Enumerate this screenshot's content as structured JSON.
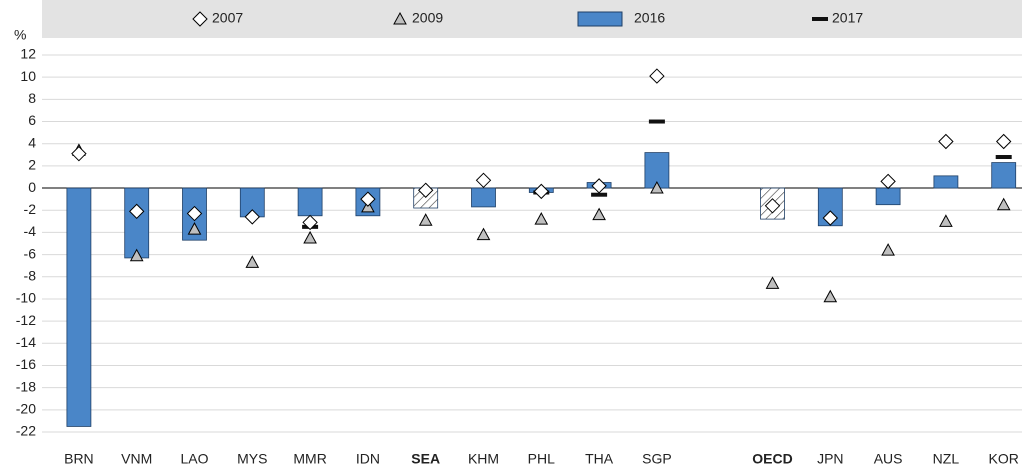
{
  "chart_data": {
    "type": "bar",
    "y_label": "%",
    "categories": [
      "BRN",
      "VNM",
      "LAO",
      "MYS",
      "MMR",
      "IDN",
      "SEA",
      "KHM",
      "PHL",
      "THA",
      "SGP",
      null,
      "OECD",
      "JPN",
      "AUS",
      "NZL",
      "KOR"
    ],
    "highlight": [
      "SEA",
      "OECD"
    ],
    "series": [
      {
        "name": "2007",
        "marker": "diamond",
        "color": "#ffffff",
        "values": [
          3.1,
          -2.1,
          -2.3,
          -2.6,
          -3.1,
          -1.0,
          -0.2,
          0.7,
          -0.3,
          0.2,
          10.1,
          null,
          -1.6,
          -2.7,
          0.6,
          4.2,
          4.2
        ]
      },
      {
        "name": "2009",
        "marker": "triangle",
        "color": "#bfbfbf",
        "values": [
          3.4,
          -6.1,
          -3.7,
          -6.7,
          -4.5,
          -1.7,
          -2.9,
          -4.2,
          -2.8,
          -2.4,
          0.0,
          null,
          -8.6,
          -9.8,
          -5.6,
          -3.0,
          -1.5
        ]
      },
      {
        "name": "2016",
        "marker": "bar",
        "color": "#4a86c8",
        "values": [
          -21.5,
          -6.3,
          -4.7,
          -2.6,
          -2.5,
          -2.5,
          -1.8,
          -1.7,
          -0.4,
          0.5,
          3.2,
          null,
          -2.8,
          -3.4,
          -1.5,
          1.1,
          2.3
        ]
      },
      {
        "name": "2017",
        "marker": "dash",
        "color": "#111111",
        "values": [
          null,
          null,
          null,
          null,
          -3.5,
          null,
          null,
          null,
          -0.4,
          -0.6,
          6.0,
          null,
          null,
          null,
          null,
          null,
          2.8
        ]
      }
    ],
    "ylim": [
      -22,
      12
    ],
    "yticks": [
      12,
      10,
      8,
      6,
      4,
      2,
      0,
      -2,
      -4,
      -6,
      -8,
      -10,
      -12,
      -14,
      -16,
      -18,
      -20,
      -22
    ],
    "grid": true
  }
}
